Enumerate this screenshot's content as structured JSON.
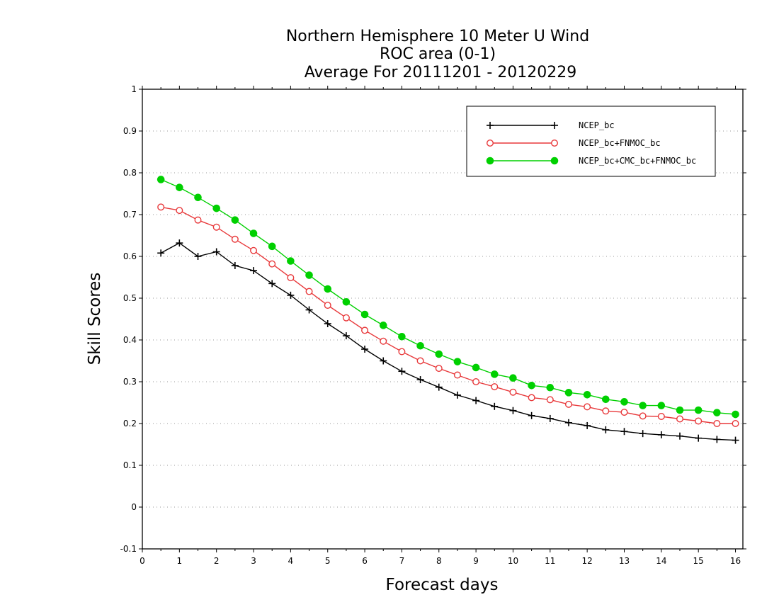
{
  "chart_data": {
    "type": "line",
    "title": "Northern Hemisphere 10 Meter U Wind",
    "subtitle": "ROC area (0-1)",
    "period": "Average For 20111201 - 20120229",
    "xlabel": "Forecast days",
    "ylabel": "Skill Scores",
    "xlim": [
      0,
      16.2
    ],
    "ylim": [
      -0.1,
      1
    ],
    "x_ticks": [
      "0",
      "1",
      "2",
      "3",
      "4",
      "5",
      "6",
      "7",
      "8",
      "9",
      "10",
      "11",
      "12",
      "13",
      "14",
      "15",
      "16"
    ],
    "y_ticks": [
      "-0.1",
      "0",
      "0.1",
      "0.2",
      "0.3",
      "0.4",
      "0.5",
      "0.6",
      "0.7",
      "0.8",
      "0.9",
      "1"
    ],
    "grid": "horizontal dotted",
    "legend_position": "top-right",
    "x": [
      0.5,
      1.0,
      1.5,
      2.0,
      2.5,
      3.0,
      3.5,
      4.0,
      4.5,
      5.0,
      5.5,
      6.0,
      6.5,
      7.0,
      7.5,
      8.0,
      8.5,
      9.0,
      9.5,
      10.0,
      10.5,
      11.0,
      11.5,
      12.0,
      12.5,
      13.0,
      13.5,
      14.0,
      14.5,
      15.0,
      15.5,
      16.0
    ],
    "series": [
      {
        "name": "NCEP_bc",
        "color": "#000000",
        "marker": "plus",
        "values": [
          0.608,
          0.632,
          0.6,
          0.611,
          0.578,
          0.566,
          0.535,
          0.507,
          0.472,
          0.439,
          0.41,
          0.378,
          0.35,
          0.325,
          0.305,
          0.287,
          0.268,
          0.255,
          0.241,
          0.231,
          0.219,
          0.212,
          0.202,
          0.195,
          0.185,
          0.181,
          0.176,
          0.173,
          0.17,
          0.165,
          0.162,
          0.16
        ]
      },
      {
        "name": "NCEP_bc+FNMOC_bc",
        "color": "#e8393b",
        "marker": "open-circle",
        "values": [
          0.718,
          0.71,
          0.687,
          0.67,
          0.641,
          0.614,
          0.582,
          0.549,
          0.516,
          0.483,
          0.453,
          0.423,
          0.397,
          0.372,
          0.35,
          0.332,
          0.316,
          0.3,
          0.288,
          0.275,
          0.262,
          0.257,
          0.246,
          0.24,
          0.23,
          0.227,
          0.218,
          0.217,
          0.211,
          0.206,
          0.2,
          0.2
        ]
      },
      {
        "name": "NCEP_bc+CMC_bc+FNMOC_bc",
        "color": "#00d000",
        "marker": "filled-circle",
        "values": [
          0.784,
          0.765,
          0.741,
          0.715,
          0.687,
          0.655,
          0.624,
          0.589,
          0.555,
          0.522,
          0.491,
          0.461,
          0.435,
          0.408,
          0.386,
          0.366,
          0.348,
          0.334,
          0.318,
          0.309,
          0.291,
          0.286,
          0.274,
          0.269,
          0.258,
          0.252,
          0.243,
          0.243,
          0.232,
          0.232,
          0.226,
          0.222
        ]
      }
    ]
  }
}
